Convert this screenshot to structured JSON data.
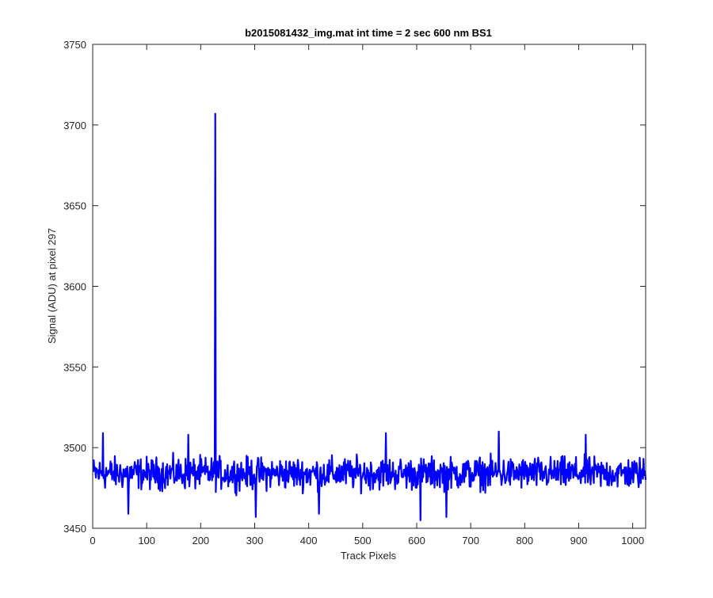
{
  "chart_data": {
    "type": "line",
    "title": "b2015081432_img.mat int time = 2 sec  600 nm BS1",
    "xlabel": "Track Pixels",
    "ylabel": "Signal (ADU) at pixel 297",
    "xlim": [
      0,
      1024
    ],
    "ylim": [
      3450,
      3750
    ],
    "xticks": [
      0,
      100,
      200,
      300,
      400,
      500,
      600,
      700,
      800,
      900,
      1000
    ],
    "yticks": [
      3450,
      3500,
      3550,
      3600,
      3650,
      3700,
      3750
    ],
    "grid": false,
    "legend": "none",
    "series": [
      {
        "color": "#0000ff",
        "x_start": 1,
        "x_step": 1,
        "baseline": 3484,
        "noise_amplitude": 9,
        "spikes": [
          {
            "x": 227,
            "y": 3707
          },
          {
            "x": 302,
            "y": 3457
          },
          {
            "x": 607,
            "y": 3455
          },
          {
            "x": 655,
            "y": 3457
          },
          {
            "x": 66,
            "y": 3459
          },
          {
            "x": 752,
            "y": 3510
          },
          {
            "x": 19,
            "y": 3509
          },
          {
            "x": 543,
            "y": 3509
          },
          {
            "x": 177,
            "y": 3508
          },
          {
            "x": 913,
            "y": 3508
          },
          {
            "x": 419,
            "y": 3459
          }
        ]
      }
    ]
  }
}
